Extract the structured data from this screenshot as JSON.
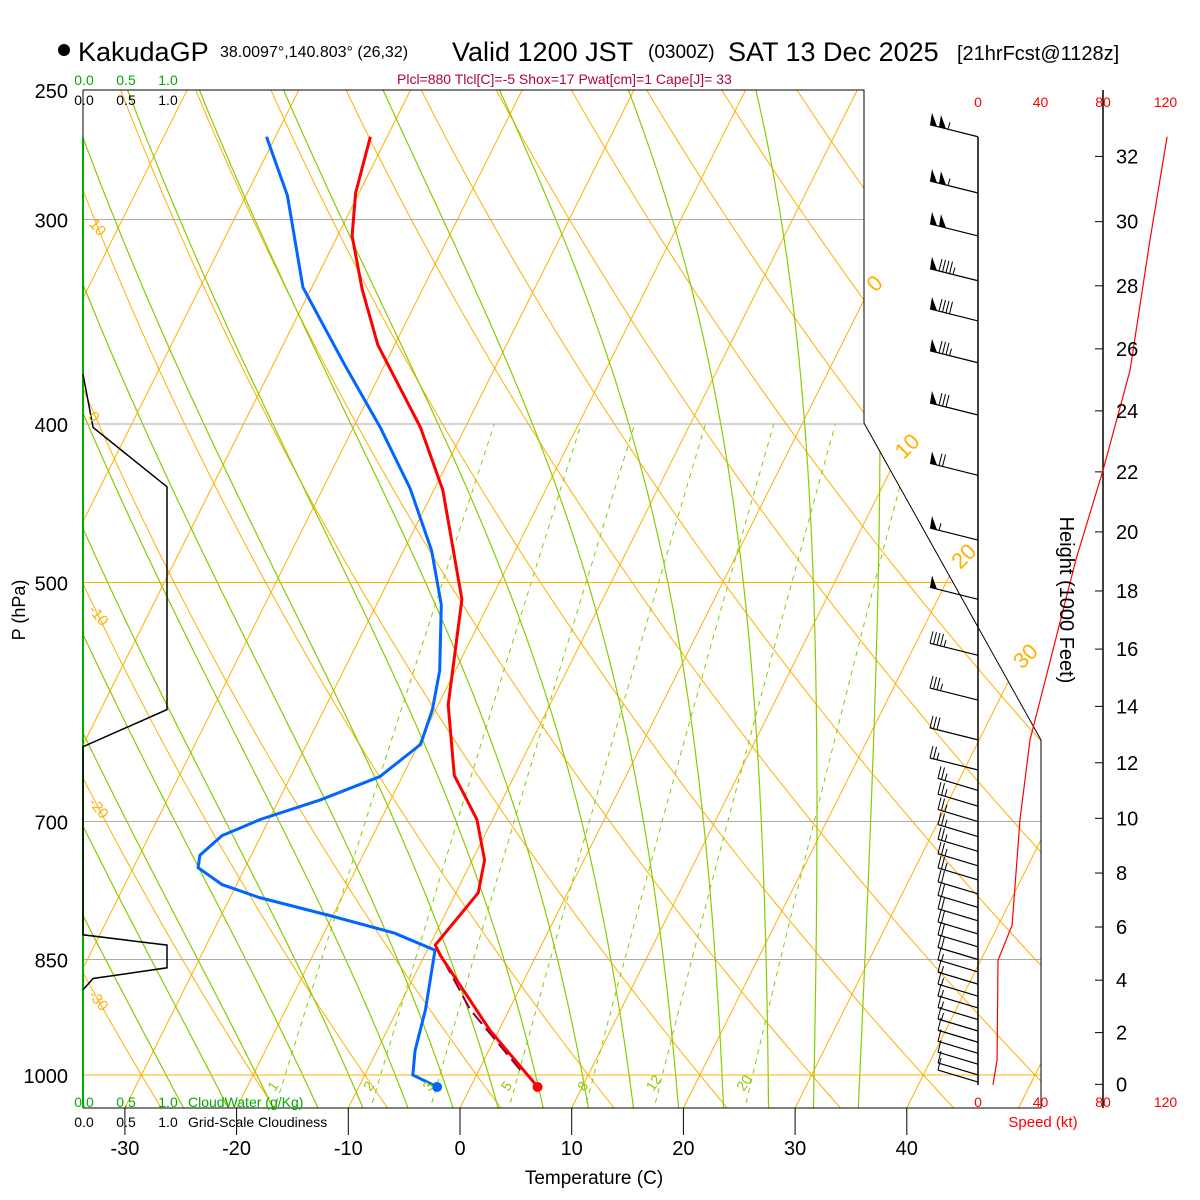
{
  "header": {
    "station": "KakudaGP",
    "coords": "38.0097°,140.803° (26,32)",
    "valid": "Valid 1200 JST",
    "utc": "(0300Z)",
    "date": "SAT 13 Dec 2025",
    "forecast": "[21hrFcst@1128z]"
  },
  "indices": "Plcl=880 Tlcl[C]=-5 Shox=17 Pwat[cm]=1 Cape[J]= 33",
  "colors": {
    "temp": "#ff0000",
    "dew": "#0066ff",
    "parcel": "#800040",
    "iso": "#ffb000",
    "moist": "#88cc00",
    "cloudwater": "#00aa00",
    "indices": "#b0004a"
  },
  "chart_data": {
    "type": "line",
    "title": "KakudaGP Skew-T Valid 1200 JST SAT 13 Dec 2025",
    "xlabel": "Temperature (C)",
    "ylabel": "P (hPa)",
    "x_ticks": [
      "-30",
      "-20",
      "-10",
      "0",
      "10",
      "20",
      "30",
      "40"
    ],
    "x_tick_values": [
      -30,
      -20,
      -10,
      0,
      10,
      20,
      30,
      40
    ],
    "p_ticks": [
      "250",
      "300",
      "400",
      "500",
      "700",
      "850",
      "1000"
    ],
    "p_tick_values": [
      250,
      300,
      400,
      500,
      700,
      850,
      1000
    ],
    "plim": [
      1050,
      250
    ],
    "temperature": {
      "name": "Temperature",
      "p": [
        1017,
        939,
        845,
        833,
        774,
        739,
        698,
        656,
        594,
        512,
        439,
        402,
        358,
        331,
        307,
        289,
        267
      ],
      "t": [
        6.0,
        -0.8,
        -8.6,
        -9.5,
        -8.0,
        -8.9,
        -11.4,
        -15.4,
        -19.1,
        -22.6,
        -29.2,
        -34.0,
        -41.5,
        -45.4,
        -48.7,
        -50.3,
        -51.5
      ]
    },
    "dewpoint": {
      "name": "Dewpoint",
      "p": [
        1017,
        1000,
        966,
        912,
        839,
        819,
        799,
        779,
        765,
        747,
        734,
        714,
        698,
        679,
        657,
        628,
        598,
        566,
        516,
        478,
        438,
        402,
        368,
        330,
        290,
        267
      ],
      "t": [
        -3.0,
        -5.7,
        -6.6,
        -7.5,
        -9.3,
        -13.7,
        -20.3,
        -27.4,
        -31.3,
        -34.2,
        -34.6,
        -33.5,
        -30.8,
        -26.3,
        -22.0,
        -19.8,
        -20.3,
        -21.4,
        -24.2,
        -27.5,
        -32.2,
        -37.6,
        -43.6,
        -50.8,
        -56.3,
        -60.8
      ]
    },
    "parcel": {
      "name": "Parcel",
      "p": [
        993,
        912,
        833
      ],
      "t": [
        3.7,
        -3.5,
        -9.5
      ]
    },
    "surface": {
      "p": 1017,
      "t": 6.0,
      "td": -3.0
    },
    "cloudiness": {
      "name": "Grid-Scale Cloudiness",
      "p": [
        373,
        402,
        437,
        598,
        630,
        821,
        833,
        860,
        873,
        887
      ],
      "f": [
        0,
        0.12,
        1,
        1,
        0,
        0,
        1,
        1,
        0.12,
        0
      ]
    },
    "cloudwater": {
      "name": "CloudWater (g/Kg)",
      "p": [
        267,
        1050
      ],
      "v": [
        0,
        0
      ]
    },
    "wind_speed": {
      "name": "Speed (kt)",
      "p": [
        1014,
        979,
        851,
        810,
        698,
        624,
        574,
        484,
        427,
        371,
        309,
        267
      ],
      "v": [
        9.6,
        12.2,
        12.8,
        21.8,
        26.9,
        33.3,
        43,
        62.7,
        80,
        97.3,
        110,
        121
      ]
    },
    "wind_barbs": {
      "p": [
        267,
        289,
        307,
        327,
        346,
        367,
        395,
        430,
        471,
        512,
        554,
        590,
        624,
        651,
        670,
        685,
        700,
        715,
        730,
        745,
        760,
        775,
        790,
        805,
        820,
        835,
        850,
        865,
        880,
        895,
        910,
        925,
        940,
        955,
        970,
        985,
        1000,
        1010
      ],
      "speed": [
        105,
        105,
        100,
        95,
        90,
        85,
        80,
        70,
        55,
        50,
        45,
        35,
        30,
        25,
        25,
        25,
        25,
        25,
        25,
        25,
        25,
        20,
        20,
        20,
        20,
        20,
        20,
        15,
        15,
        15,
        15,
        15,
        15,
        10,
        10,
        10,
        10,
        10
      ]
    },
    "height_ticks": [
      "0",
      "2",
      "4",
      "6",
      "8",
      "10",
      "12",
      "14",
      "16",
      "18",
      "20",
      "22",
      "24",
      "26",
      "28",
      "30",
      "32"
    ],
    "height_values": [
      0,
      2,
      4,
      6,
      8,
      10,
      12,
      14,
      16,
      18,
      20,
      22,
      24,
      26,
      28,
      30,
      32
    ],
    "height_label": "Height (1000 Feet)",
    "speed_ticks": [
      "0",
      "40",
      "80",
      "120"
    ],
    "speed_values": [
      0,
      40,
      80,
      120
    ],
    "speed_label": "Speed (kt)",
    "fraction_ticks": [
      "0.0",
      "0.5",
      "1.0"
    ],
    "cloudwater_label": "CloudWater (g/Kg)",
    "cloudiness_label": "Grid-Scale Cloudiness",
    "mixing_ratio_labels": [
      "1",
      "2",
      "3",
      "5",
      "8",
      "12",
      "20"
    ],
    "mixing_ratio_values": [
      1,
      2,
      3,
      5,
      8,
      12,
      20
    ],
    "dry_adiabat_labels": [
      "10",
      "0",
      "-10",
      "-20",
      "-30"
    ],
    "dry_adiabat_values": [
      10,
      0,
      -10,
      -20,
      -30
    ],
    "isotherm_labels": [
      "0",
      "10",
      "20",
      "30"
    ],
    "isotherm_values": [
      0,
      10,
      20,
      30
    ]
  }
}
